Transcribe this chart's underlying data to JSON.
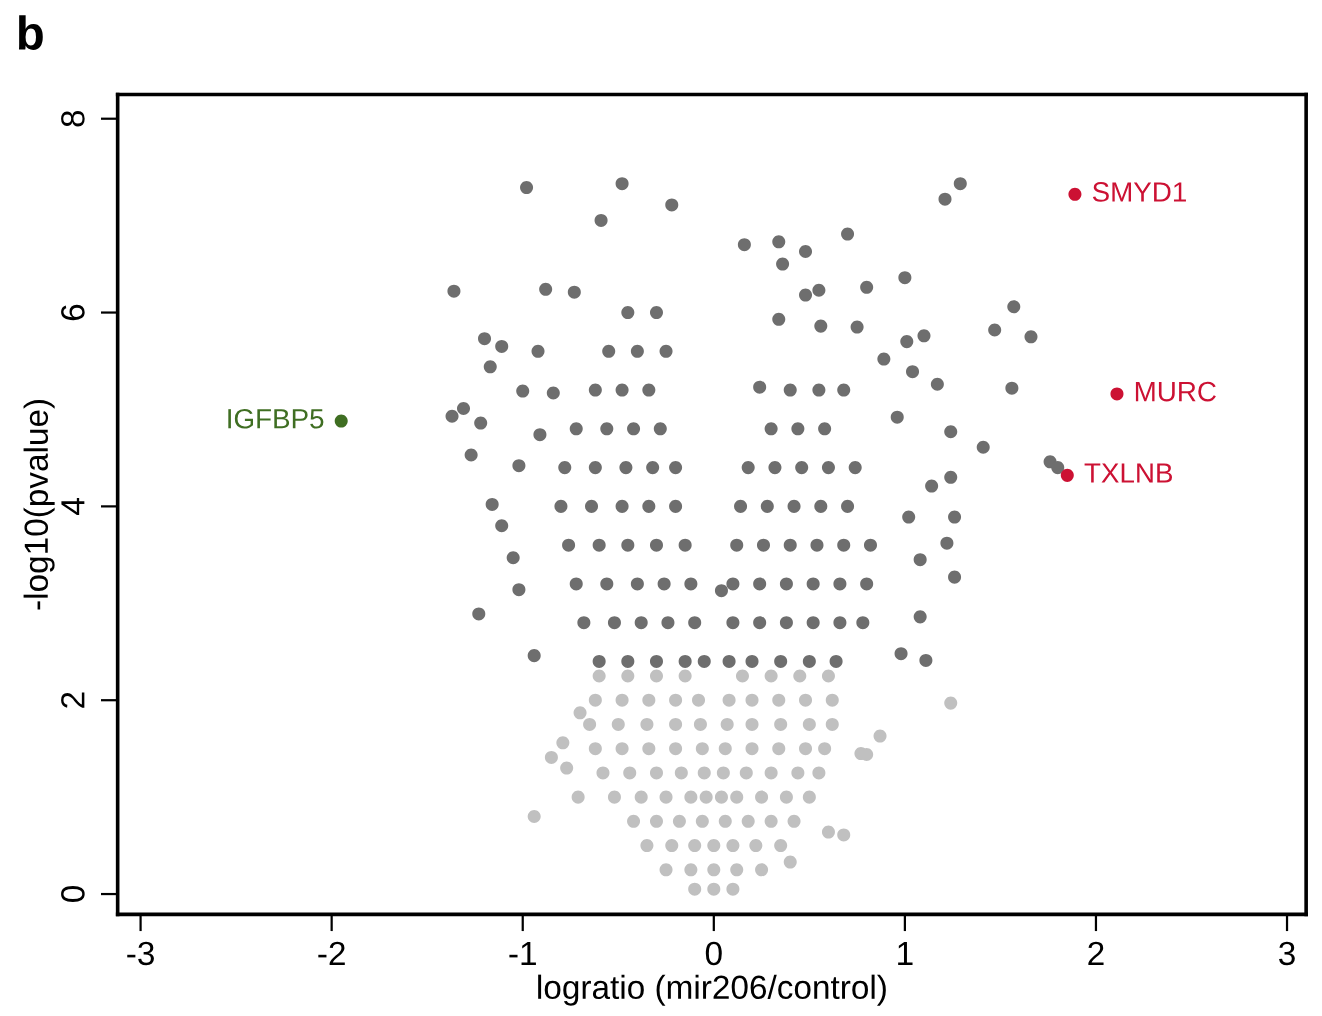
{
  "chart_data": {
    "type": "scatter",
    "title": "b",
    "xlabel": "logratio (mir206/control)",
    "ylabel": "-log10(pvalue)",
    "xlim": [
      -3.12,
      3.1
    ],
    "ylim": [
      -0.21,
      8.25
    ],
    "xticks": [
      -3,
      -2,
      -1,
      0,
      1,
      2,
      3
    ],
    "yticks": [
      0,
      2,
      4,
      6,
      8
    ],
    "grid": false,
    "marker": "circle",
    "series": [
      {
        "color": "#c0c0c0",
        "x": [
          -0.6,
          -0.45,
          -0.3,
          -0.15,
          0.15,
          0.3,
          0.45,
          0.6,
          -0.62,
          -0.48,
          -0.34,
          -0.2,
          -0.08,
          0.08,
          0.2,
          0.34,
          0.48,
          0.62,
          -0.65,
          -0.5,
          -0.35,
          -0.2,
          -0.07,
          0.07,
          0.2,
          0.35,
          0.5,
          0.62,
          -0.62,
          -0.48,
          -0.34,
          -0.2,
          -0.06,
          0.06,
          0.2,
          0.34,
          0.48,
          0.58,
          -0.58,
          -0.44,
          -0.3,
          -0.17,
          -0.05,
          0.05,
          0.17,
          0.3,
          0.44,
          0.55,
          -0.52,
          -0.38,
          -0.25,
          -0.12,
          -0.04,
          0.04,
          0.12,
          0.25,
          0.38,
          0.5,
          -0.42,
          -0.3,
          -0.18,
          -0.06,
          0.06,
          0.18,
          0.3,
          0.42,
          -0.35,
          -0.22,
          -0.1,
          0,
          0.1,
          0.22,
          0.35,
          -0.25,
          -0.12,
          0,
          0.12,
          0.25,
          -0.1,
          0,
          0.1,
          1.24,
          0.87,
          0.8,
          0.77,
          0.68,
          0.6,
          0.4,
          -0.94,
          -0.85,
          -0.79,
          -0.77,
          -0.71,
          -0.7
        ],
        "values": [
          2.25,
          2.25,
          2.25,
          2.25,
          2.25,
          2.25,
          2.25,
          2.25,
          2.0,
          2.0,
          2.0,
          2.0,
          2.0,
          2.0,
          2.0,
          2.0,
          2.0,
          2.0,
          1.75,
          1.75,
          1.75,
          1.75,
          1.75,
          1.75,
          1.75,
          1.75,
          1.75,
          1.75,
          1.5,
          1.5,
          1.5,
          1.5,
          1.5,
          1.5,
          1.5,
          1.5,
          1.5,
          1.5,
          1.25,
          1.25,
          1.25,
          1.25,
          1.25,
          1.25,
          1.25,
          1.25,
          1.25,
          1.25,
          1.0,
          1.0,
          1.0,
          1.0,
          1.0,
          1.0,
          1.0,
          1.0,
          1.0,
          1.0,
          0.75,
          0.75,
          0.75,
          0.75,
          0.75,
          0.75,
          0.75,
          0.75,
          0.5,
          0.5,
          0.5,
          0.5,
          0.5,
          0.5,
          0.5,
          0.25,
          0.25,
          0.25,
          0.25,
          0.25,
          0.05,
          0.05,
          0.05,
          1.97,
          1.63,
          1.44,
          1.45,
          0.61,
          0.64,
          0.33,
          0.8,
          1.41,
          1.56,
          1.3,
          1.0,
          1.87
        ]
      },
      {
        "color": "#6e6e6e",
        "x": [
          -0.6,
          -0.45,
          -0.3,
          -0.15,
          -0.05,
          -0.68,
          -0.52,
          -0.38,
          -0.24,
          -0.1,
          -0.72,
          -0.56,
          -0.4,
          -0.26,
          -0.12,
          -0.76,
          -0.6,
          -0.45,
          -0.3,
          -0.15,
          -0.8,
          -0.64,
          -0.48,
          -0.34,
          -0.2,
          -0.78,
          -0.62,
          -0.46,
          -0.32,
          -0.2,
          -0.72,
          -0.56,
          -0.42,
          -0.28,
          -0.62,
          -0.48,
          -0.34,
          -0.55,
          -0.4,
          -0.25,
          -0.45,
          -0.3,
          -0.98,
          -0.48,
          -0.59,
          -1.36,
          -0.88,
          -0.73,
          -1.2,
          -1.11,
          -1.17,
          -0.92,
          -1.0,
          -1.37,
          -1.31,
          -1.22,
          -1.27,
          -1.02,
          -1.16,
          -1.11,
          -1.05,
          -1.02,
          -1.23,
          -0.94,
          -0.91,
          -0.84,
          -0.22,
          0.08,
          0.2,
          0.35,
          0.5,
          0.64,
          0.1,
          0.24,
          0.38,
          0.52,
          0.66,
          0.78,
          0.1,
          0.24,
          0.38,
          0.52,
          0.66,
          0.8,
          0.12,
          0.26,
          0.4,
          0.54,
          0.68,
          0.82,
          0.14,
          0.28,
          0.42,
          0.56,
          0.7,
          0.18,
          0.32,
          0.46,
          0.6,
          0.74,
          0.3,
          0.44,
          0.58,
          0.4,
          0.55,
          0.68,
          1.29,
          1.21,
          0.7,
          0.16,
          0.34,
          0.36,
          0.48,
          1.0,
          0.8,
          0.48,
          0.55,
          1.57,
          1.47,
          1.66,
          1.1,
          1.01,
          0.34,
          0.75,
          0.56,
          0.89,
          1.04,
          1.17,
          1.56,
          0.24,
          0.96,
          1.24,
          1.41,
          1.76,
          1.8,
          1.24,
          1.14,
          1.26,
          1.02,
          1.22,
          1.08,
          1.26,
          1.08,
          0.98,
          1.11,
          0.04
        ],
        "values": [
          2.4,
          2.4,
          2.4,
          2.4,
          2.4,
          2.8,
          2.8,
          2.8,
          2.8,
          2.8,
          3.2,
          3.2,
          3.2,
          3.2,
          3.2,
          3.6,
          3.6,
          3.6,
          3.6,
          3.6,
          4.0,
          4.0,
          4.0,
          4.0,
          4.0,
          4.4,
          4.4,
          4.4,
          4.4,
          4.4,
          4.8,
          4.8,
          4.8,
          4.8,
          5.2,
          5.2,
          5.2,
          5.6,
          5.6,
          5.6,
          6.0,
          6.0,
          7.29,
          7.33,
          6.95,
          6.22,
          6.24,
          6.21,
          5.73,
          5.65,
          5.44,
          5.6,
          5.19,
          4.93,
          5.01,
          4.86,
          4.53,
          4.42,
          4.02,
          3.8,
          3.47,
          3.14,
          2.89,
          2.46,
          4.74,
          5.17,
          7.11,
          2.4,
          2.4,
          2.4,
          2.4,
          2.4,
          2.8,
          2.8,
          2.8,
          2.8,
          2.8,
          2.8,
          3.2,
          3.2,
          3.2,
          3.2,
          3.2,
          3.2,
          3.6,
          3.6,
          3.6,
          3.6,
          3.6,
          3.6,
          4.0,
          4.0,
          4.0,
          4.0,
          4.0,
          4.4,
          4.4,
          4.4,
          4.4,
          4.4,
          4.8,
          4.8,
          4.8,
          5.2,
          5.2,
          5.2,
          7.33,
          7.17,
          6.81,
          6.7,
          6.73,
          6.5,
          6.63,
          6.36,
          6.26,
          6.18,
          6.23,
          6.06,
          5.82,
          5.75,
          5.76,
          5.7,
          5.93,
          5.85,
          5.86,
          5.52,
          5.39,
          5.26,
          5.22,
          5.23,
          4.92,
          4.77,
          4.61,
          4.46,
          4.4,
          4.3,
          4.21,
          3.89,
          3.89,
          3.62,
          3.45,
          3.27,
          2.86,
          2.48,
          2.41,
          3.13
        ]
      },
      {
        "color": "#cc1133",
        "x": [
          1.89,
          2.11,
          1.85
        ],
        "values": [
          7.22,
          5.16,
          4.32
        ]
      },
      {
        "color": "#3f6e22",
        "x": [
          -1.95
        ],
        "values": [
          4.88
        ]
      }
    ],
    "annotations": [
      {
        "text": "SMYD1",
        "x": 1.89,
        "y": 7.22
      },
      {
        "text": "MURC",
        "x": 2.11,
        "y": 5.16
      },
      {
        "text": "TXLNB",
        "x": 1.85,
        "y": 4.32
      },
      {
        "text": "IGFBP5",
        "x": -1.95,
        "y": 4.88
      }
    ]
  }
}
